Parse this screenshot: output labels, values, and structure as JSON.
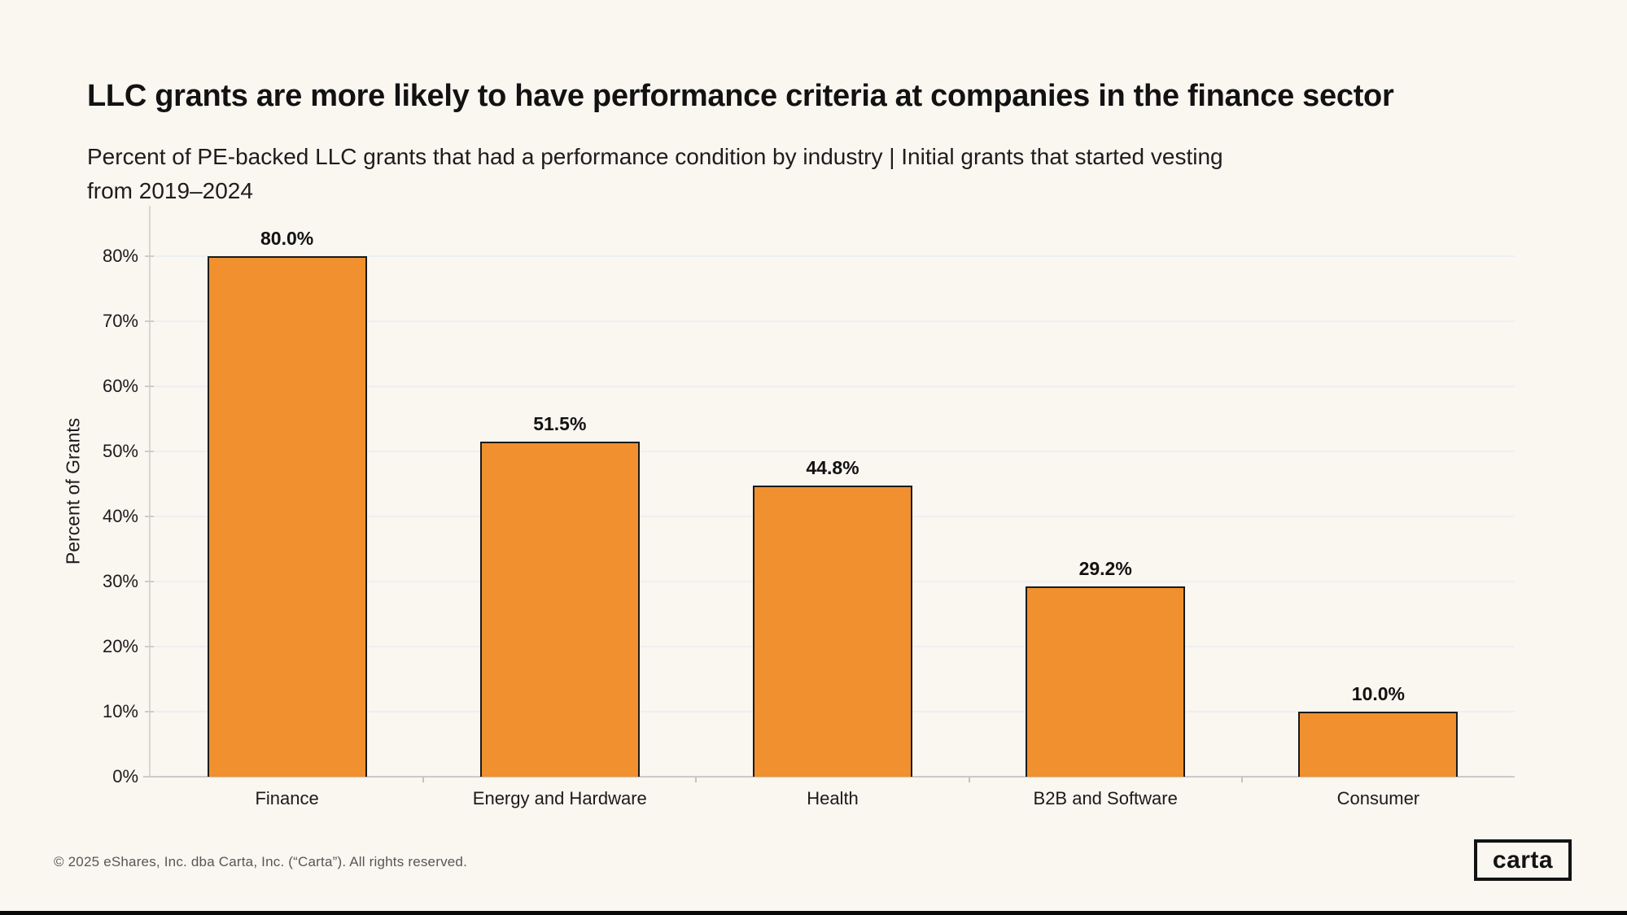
{
  "page": {
    "title": "LLC grants are more likely to have performance criteria at companies in the finance sector",
    "subtitle_line1": "Percent of PE-backed LLC grants that had a performance condition by industry | Initial grants that started vesting",
    "subtitle_line2": "from 2019–2024"
  },
  "chart_data": {
    "type": "bar",
    "title": "LLC grants are more likely to have performance criteria at companies in the finance sector",
    "subtitle": "Percent of PE-backed LLC grants that had a performance condition by industry | Initial grants that started vesting from 2019–2024",
    "categories": [
      "Finance",
      "Energy and Hardware",
      "Health",
      "B2B and Software",
      "Consumer"
    ],
    "values": [
      80.0,
      51.5,
      44.8,
      29.2,
      10.0
    ],
    "value_labels": [
      "80.0%",
      "51.5%",
      "44.8%",
      "29.2%",
      "10.0%"
    ],
    "xlabel": "",
    "ylabel": "Percent of Grants",
    "y_tick_labels": [
      "0%",
      "10%",
      "20%",
      "30%",
      "40%",
      "50%",
      "60%",
      "70%",
      "80%"
    ],
    "ylim": [
      0,
      87.75
    ],
    "grid": "horizontal",
    "legend": "none",
    "colors": {
      "bar_fill": "#F0902E",
      "bar_border": "#1A1A1A",
      "background": "#FAF6F0",
      "gridline": "#EDF0F2",
      "axis_line": "#CBCBCB"
    }
  },
  "footer": {
    "copyright": "© 2025 eShares, Inc. dba Carta, Inc. (“Carta”). All rights reserved.",
    "logo_text": "carta"
  }
}
